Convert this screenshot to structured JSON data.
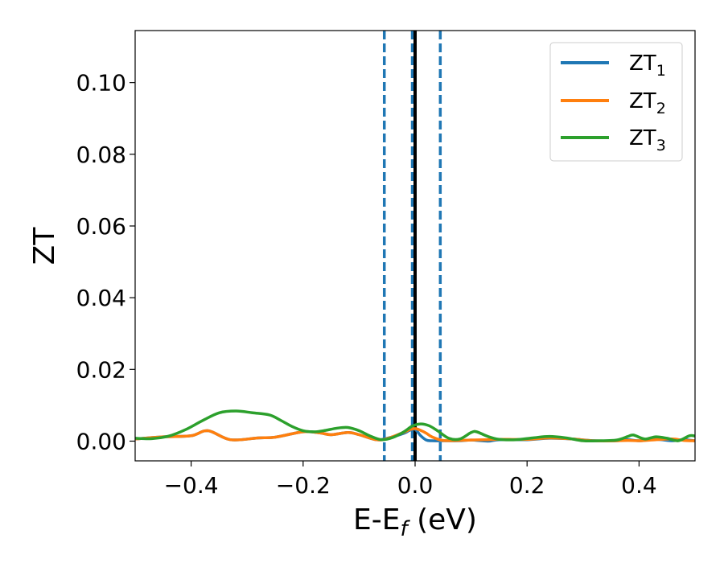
{
  "chart_data": {
    "type": "line",
    "title": "",
    "xlabel": {
      "main": "E-E",
      "sub": "f",
      "suffix": " (eV)"
    },
    "ylabel": "ZT",
    "xlim": [
      -0.5,
      0.5
    ],
    "ylim": [
      -0.0055,
      0.1145
    ],
    "x_ticks": [
      -0.4,
      -0.2,
      0.0,
      0.2,
      0.4
    ],
    "x_tick_labels": [
      "−0.4",
      "−0.2",
      "0.0",
      "0.2",
      "0.4"
    ],
    "y_ticks": [
      0.0,
      0.02,
      0.04,
      0.06,
      0.08,
      0.1
    ],
    "y_tick_labels": [
      "0.00",
      "0.02",
      "0.04",
      "0.06",
      "0.08",
      "0.10"
    ],
    "grid": false,
    "legend_position": "top-right",
    "vertical_lines": [
      {
        "x": -0.055,
        "color": "#1f77b4",
        "style": "dashed"
      },
      {
        "x": -0.005,
        "color": "#1f77b4",
        "style": "dashed"
      },
      {
        "x": 0.0,
        "color": "#000000",
        "style": "solid"
      },
      {
        "x": 0.045,
        "color": "#1f77b4",
        "style": "dashed"
      }
    ],
    "series": [
      {
        "name": "ZT",
        "name_sub": "1",
        "color": "#1f77b4",
        "x": [
          -0.5,
          -0.45,
          -0.4,
          -0.37,
          -0.33,
          -0.28,
          -0.25,
          -0.2,
          -0.17,
          -0.15,
          -0.12,
          -0.1,
          -0.07,
          -0.05,
          -0.02,
          -0.01,
          0.0,
          0.01,
          0.02,
          0.03,
          0.05,
          0.08,
          0.1,
          0.13,
          0.15,
          0.2,
          0.24,
          0.28,
          0.32,
          0.36,
          0.38,
          0.4,
          0.43,
          0.46,
          0.48,
          0.5
        ],
        "y": [
          0.0006,
          0.0012,
          0.0015,
          0.0029,
          0.0004,
          0.0009,
          0.0011,
          0.0026,
          0.0023,
          0.0018,
          0.0024,
          0.0018,
          0.0004,
          0.0008,
          0.0022,
          0.003,
          0.0033,
          0.0015,
          0.0003,
          0.0001,
          0.0001,
          0.0001,
          0.0003,
          0.0,
          0.0004,
          0.0004,
          0.0008,
          0.0006,
          0.0001,
          0.0001,
          0.0004,
          0.0001,
          0.0005,
          0.0001,
          0.0004,
          0.0001
        ]
      },
      {
        "name": "ZT",
        "name_sub": "2",
        "color": "#ff7f0e",
        "x": [
          -0.5,
          -0.45,
          -0.4,
          -0.37,
          -0.33,
          -0.28,
          -0.25,
          -0.2,
          -0.17,
          -0.15,
          -0.12,
          -0.1,
          -0.07,
          -0.05,
          -0.02,
          -0.01,
          0.0,
          0.01,
          0.02,
          0.03,
          0.05,
          0.08,
          0.1,
          0.13,
          0.15,
          0.2,
          0.24,
          0.28,
          0.32,
          0.36,
          0.38,
          0.4,
          0.43,
          0.46,
          0.48,
          0.5
        ],
        "y": [
          0.0006,
          0.0012,
          0.0015,
          0.0029,
          0.0004,
          0.0009,
          0.0011,
          0.0026,
          0.0023,
          0.0018,
          0.0024,
          0.0018,
          0.0004,
          0.0007,
          0.0025,
          0.0032,
          0.0035,
          0.003,
          0.0022,
          0.0012,
          0.0002,
          0.0002,
          0.0003,
          0.0004,
          0.0005,
          0.0005,
          0.0009,
          0.0006,
          0.0001,
          0.0001,
          0.0002,
          0.0001,
          0.0004,
          0.0006,
          0.0002,
          0.0001
        ]
      },
      {
        "name": "ZT",
        "name_sub": "3",
        "color": "#2ca02c",
        "x": [
          -0.5,
          -0.47,
          -0.44,
          -0.41,
          -0.38,
          -0.35,
          -0.32,
          -0.29,
          -0.26,
          -0.24,
          -0.22,
          -0.2,
          -0.18,
          -0.16,
          -0.14,
          -0.12,
          -0.1,
          -0.08,
          -0.06,
          -0.04,
          -0.02,
          -0.005,
          0.01,
          0.025,
          0.04,
          0.06,
          0.08,
          0.1,
          0.11,
          0.13,
          0.15,
          0.18,
          0.21,
          0.24,
          0.27,
          0.3,
          0.33,
          0.36,
          0.38,
          0.39,
          0.41,
          0.43,
          0.45,
          0.47,
          0.49,
          0.5
        ],
        "y": [
          0.0008,
          0.0007,
          0.0014,
          0.0032,
          0.0057,
          0.0079,
          0.0084,
          0.0079,
          0.0073,
          0.0058,
          0.0041,
          0.0029,
          0.0026,
          0.003,
          0.0036,
          0.0038,
          0.0029,
          0.0014,
          0.0004,
          0.001,
          0.0026,
          0.0042,
          0.0048,
          0.0043,
          0.0029,
          0.0008,
          0.0006,
          0.0024,
          0.0026,
          0.0013,
          0.0005,
          0.0004,
          0.0009,
          0.0013,
          0.0009,
          0.0001,
          0.0001,
          0.0003,
          0.0013,
          0.0017,
          0.0006,
          0.0012,
          0.0008,
          0.0001,
          0.0015,
          0.0014
        ]
      }
    ]
  }
}
